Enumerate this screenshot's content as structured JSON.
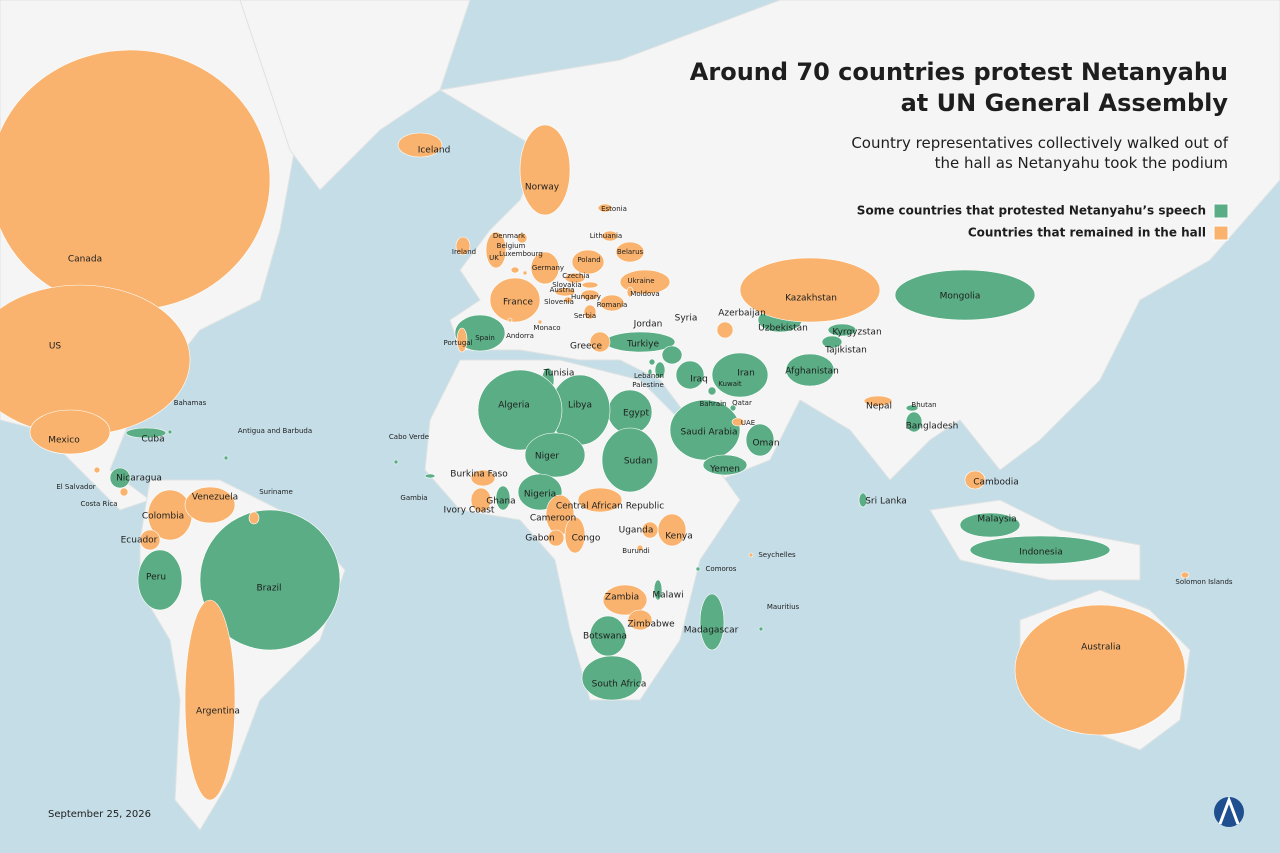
{
  "header": {
    "title_line1": "Around 70 countries protest Netanyahu",
    "title_line2": "at UN General Assembly",
    "subtitle_line1": "Country representatives collectively walked out of",
    "subtitle_line2": "the hall as Netanyahu took the podium"
  },
  "legend": [
    {
      "label": "Some countries that protested Netanyahu’s speech",
      "color": "#5aad84"
    },
    {
      "label": "Countries that remained in the hall",
      "color": "#f9b36e"
    }
  ],
  "protested": [
    "Spain",
    "Turkiye",
    "Jordan",
    "Syria",
    "Iraq",
    "Iran",
    "Kuwait",
    "Bahrain",
    "Qatar",
    "Saudi Arabia",
    "Oman",
    "Yemen",
    "Egypt",
    "Libya",
    "Tunisia",
    "Algeria",
    "Niger",
    "Sudan",
    "Nigeria",
    "Ghana",
    "Lebanon",
    "Palestine",
    "Afghanistan",
    "Uzbekistan",
    "Kyrgyzstan",
    "Tajikistan",
    "Mongolia",
    "Bangladesh",
    "Bhutan",
    "Sri Lanka",
    "Malaysia",
    "Indonesia",
    "Cuba",
    "Nicaragua",
    "Brazil",
    "Peru",
    "Botswana",
    "South Africa",
    "Madagascar",
    "Malawi",
    "Comoros",
    "Mauritius",
    "Bahamas",
    "Antigua and Barbuda",
    "Cabo Verde",
    "Gambia"
  ],
  "remained": [
    "Canada",
    "US",
    "Mexico",
    "El Salvador",
    "Costa Rica",
    "Colombia",
    "Venezuela",
    "Ecuador",
    "Suriname",
    "Argentina",
    "Iceland",
    "Norway",
    "Estonia",
    "Lithuania",
    "Belarus",
    "Denmark",
    "Ireland",
    "Belgium",
    "UK",
    "Luxembourg",
    "Poland",
    "Germany",
    "Czechia",
    "Ukraine",
    "Slovakia",
    "Austria",
    "Hungary",
    "Moldova",
    "France",
    "Slovenia",
    "Romania",
    "Serbia",
    "Monaco",
    "Andorra",
    "Portugal",
    "Greece",
    "Kazakhstan",
    "Azerbaijan",
    "UAE",
    "Nepal",
    "Cambodia",
    "Burkina Faso",
    "Ivory Coast",
    "Cameroon",
    "Central African Republic",
    "Gabon",
    "Congo",
    "Uganda",
    "Kenya",
    "Burundi",
    "Zambia",
    "Zimbabwe",
    "Australia",
    "Seychelles",
    "Solomon Islands"
  ],
  "footer": {
    "date": "September 25, 2026"
  }
}
